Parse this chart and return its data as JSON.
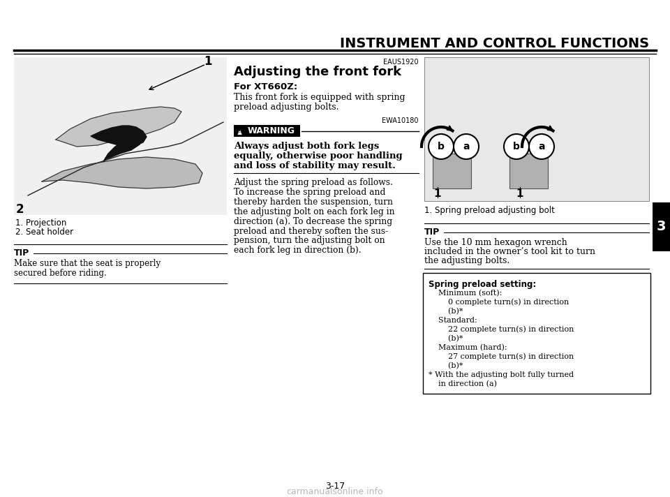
{
  "title": "INSTRUMENT AND CONTROL FUNCTIONS",
  "page_number": "3-17",
  "tab_number": "3",
  "background_color": "#ffffff",
  "left_col": {
    "caption1": "1. Projection",
    "caption2": "2. Seat holder",
    "tip_title": "TIP",
    "tip_text_line1": "Make sure that the seat is properly",
    "tip_text_line2": "secured before riding."
  },
  "middle_col": {
    "eaus_code": "EAUS1920",
    "section_title": "Adjusting the front fork",
    "for_label": "For XT660Z:",
    "for_text_line1": "This front fork is equipped with spring",
    "for_text_line2": "preload adjusting bolts.",
    "ewa_code": "EWA10180",
    "warn_label": "WARNING",
    "warn_line1": "Always adjust both fork legs",
    "warn_line2": "equally, otherwise poor handling",
    "warn_line3": "and loss of stability may result.",
    "body_lines": [
      "Adjust the spring preload as follows.",
      "To increase the spring preload and",
      "thereby harden the suspension, turn",
      "the adjusting bolt on each fork leg in",
      "direction (a). To decrease the spring",
      "preload and thereby soften the sus-",
      "pension, turn the adjusting bolt on",
      "each fork leg in direction (b)."
    ]
  },
  "right_col": {
    "image_caption": "1. Spring preload adjusting bolt",
    "tip_title": "TIP",
    "tip_line1": "Use the 10 mm hexagon wrench",
    "tip_line2": "included in the owner’s tool kit to turn",
    "tip_line3": "the adjusting bolts.",
    "box_title": "Spring preload setting:",
    "box_lines": [
      "    Minimum (soft):",
      "        0 complete turn(s) in direction",
      "        (b)*",
      "    Standard:",
      "        22 complete turn(s) in direction",
      "        (b)*",
      "    Maximum (hard):",
      "        27 complete turn(s) in direction",
      "        (b)*",
      "* With the adjusting bolt fully turned",
      "    in direction (a)"
    ]
  }
}
